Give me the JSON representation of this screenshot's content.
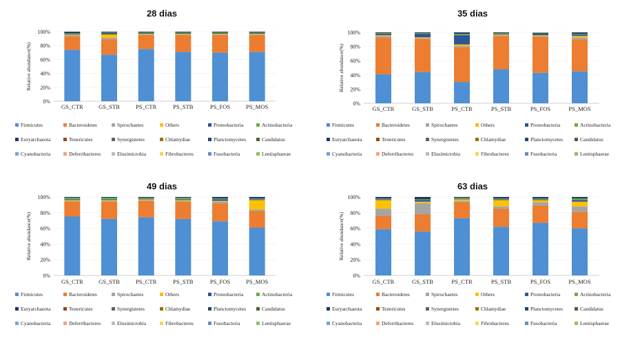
{
  "colors": {
    "Firmicutes": "#4f8fd3",
    "Bacteroidetes": "#ec7d31",
    "Spirochaetes": "#a5a5a5",
    "Others": "#fec000",
    "Proteobacteria": "#2e5597",
    "Actinobacteria": "#6fab46",
    "Euryarchaeota": "#203864",
    "Tenericutes": "#9e480e",
    "Synergistetes": "#636363",
    "Chlamydiae": "#997300",
    "Planctomycetes": "#254479",
    "Candidatus": "#43682b",
    "Cyanobacteria": "#6da6db",
    "Deferribacteres": "#f4a370",
    "Elusimicrobia": "#bcbcbc",
    "Fibrobacteres": "#ffd24c",
    "Fusobacteria": "#688bc7",
    "Lentisphaerae": "#8dc263"
  },
  "legend": [
    "Firmicutes",
    "Bacteroidetes",
    "Spirochaetes",
    "Others",
    "Proteobacteria",
    "Actinobacteria",
    "Euryarchaeota",
    "Tenericutes",
    "Synergistetes",
    "Chlamydiae",
    "Planctomycetes",
    "Candidatus",
    "Cyanobacteria",
    "Deferribacteres",
    "Elusimicrobia",
    "Fibrobacteres",
    "Fusobacteria",
    "Lentisphaerae"
  ],
  "chart_data": [
    {
      "type": "bar",
      "stacked": true,
      "title": "28 dias",
      "ylabel": "Relative abundance(%)",
      "ylim": [
        0,
        100
      ],
      "yticks": [
        "0%",
        "20%",
        "40%",
        "60%",
        "80%",
        "100%"
      ],
      "categories": [
        "GS_CTR",
        "GS_STB",
        "PS_CTR",
        "PS_STB",
        "PS_FOS",
        "PS_MOS"
      ],
      "series": [
        {
          "name": "Firmicutes",
          "values": [
            74,
            67,
            75,
            71,
            70,
            71
          ]
        },
        {
          "name": "Bacteroidetes",
          "values": [
            19,
            22,
            20,
            24,
            25,
            24
          ]
        },
        {
          "name": "Spirochaetes",
          "values": [
            2,
            2,
            1,
            1,
            1,
            1
          ]
        },
        {
          "name": "Others",
          "values": [
            1,
            5,
            1,
            1,
            1,
            1
          ]
        },
        {
          "name": "Proteobacteria",
          "values": [
            1,
            2,
            1,
            1,
            1,
            1
          ]
        },
        {
          "name": "Actinobacteria",
          "values": [
            1,
            1,
            1,
            1,
            1,
            1
          ]
        },
        {
          "name": "Euryarchaeota",
          "values": [
            2,
            1,
            1,
            1,
            1,
            1
          ]
        }
      ]
    },
    {
      "type": "bar",
      "stacked": true,
      "title": "35 dias",
      "ylabel": "Relative abundance(%)",
      "ylim": [
        0,
        100
      ],
      "yticks": [
        "0%",
        "20%",
        "40%",
        "60%",
        "80%",
        "100%"
      ],
      "categories": [
        "GS_CTR",
        "GS_STB",
        "PS_CTR",
        "PS_STB",
        "PS_FOS",
        "PS_MOS"
      ],
      "series": [
        {
          "name": "Firmicutes",
          "values": [
            41,
            44,
            30,
            48,
            43,
            45
          ]
        },
        {
          "name": "Bacteroidetes",
          "values": [
            52,
            47,
            49,
            47,
            51,
            45
          ]
        },
        {
          "name": "Spirochaetes",
          "values": [
            2,
            1,
            2,
            1,
            1,
            3
          ]
        },
        {
          "name": "Others",
          "values": [
            1,
            1,
            2,
            1,
            1,
            2
          ]
        },
        {
          "name": "Proteobacteria",
          "values": [
            2,
            5,
            13,
            1,
            3,
            2
          ]
        },
        {
          "name": "Actinobacteria",
          "values": [
            1,
            1,
            2,
            1,
            1,
            1
          ]
        },
        {
          "name": "Euryarchaeota",
          "values": [
            1,
            1,
            2,
            1,
            0,
            2
          ]
        }
      ]
    },
    {
      "type": "bar",
      "stacked": true,
      "title": "49 dias",
      "ylabel": "Relative abundance(%)",
      "ylim": [
        0,
        100
      ],
      "yticks": [
        "0%",
        "20%",
        "40%",
        "60%",
        "80%",
        "100%"
      ],
      "categories": [
        "GS_CTR",
        "GS_STB",
        "PS_CTR",
        "PS_STB",
        "PS_FOS",
        "PS_MOS"
      ],
      "series": [
        {
          "name": "Firmicutes",
          "values": [
            75,
            72,
            74,
            72,
            69,
            61
          ]
        },
        {
          "name": "Bacteroidetes",
          "values": [
            19,
            22,
            21,
            22,
            23,
            21
          ]
        },
        {
          "name": "Spirochaetes",
          "values": [
            1,
            1,
            1,
            1,
            2,
            2
          ]
        },
        {
          "name": "Others",
          "values": [
            1,
            1,
            1,
            1,
            1,
            12
          ]
        },
        {
          "name": "Proteobacteria",
          "values": [
            1,
            1,
            1,
            1,
            2,
            1
          ]
        },
        {
          "name": "Actinobacteria",
          "values": [
            2,
            2,
            1,
            2,
            1,
            1
          ]
        },
        {
          "name": "Euryarchaeota",
          "values": [
            1,
            1,
            1,
            1,
            2,
            2
          ]
        }
      ]
    },
    {
      "type": "bar",
      "stacked": true,
      "title": "63 dias",
      "ylabel": "Relative abundance(%)",
      "ylim": [
        0,
        100
      ],
      "yticks": [
        "0%",
        "20%",
        "40%",
        "60%",
        "80%",
        "100%"
      ],
      "categories": [
        "GS_CTR",
        "GS_STB",
        "PS_CTR",
        "PS_STB",
        "PS_FOS",
        "PS_MOS"
      ],
      "series": [
        {
          "name": "Firmicutes",
          "values": [
            59,
            56,
            73,
            62,
            67,
            60
          ]
        },
        {
          "name": "Bacteroidetes",
          "values": [
            17,
            22,
            20,
            23,
            22,
            21
          ]
        },
        {
          "name": "Spirochaetes",
          "values": [
            9,
            14,
            2,
            3,
            4,
            7
          ]
        },
        {
          "name": "Others",
          "values": [
            11,
            2,
            2,
            8,
            3,
            6
          ]
        },
        {
          "name": "Proteobacteria",
          "values": [
            1,
            2,
            1,
            1,
            1,
            2
          ]
        },
        {
          "name": "Actinobacteria",
          "values": [
            1,
            1,
            1,
            1,
            1,
            2
          ]
        },
        {
          "name": "Euryarchaeota",
          "values": [
            2,
            3,
            1,
            2,
            2,
            2
          ]
        }
      ]
    }
  ]
}
